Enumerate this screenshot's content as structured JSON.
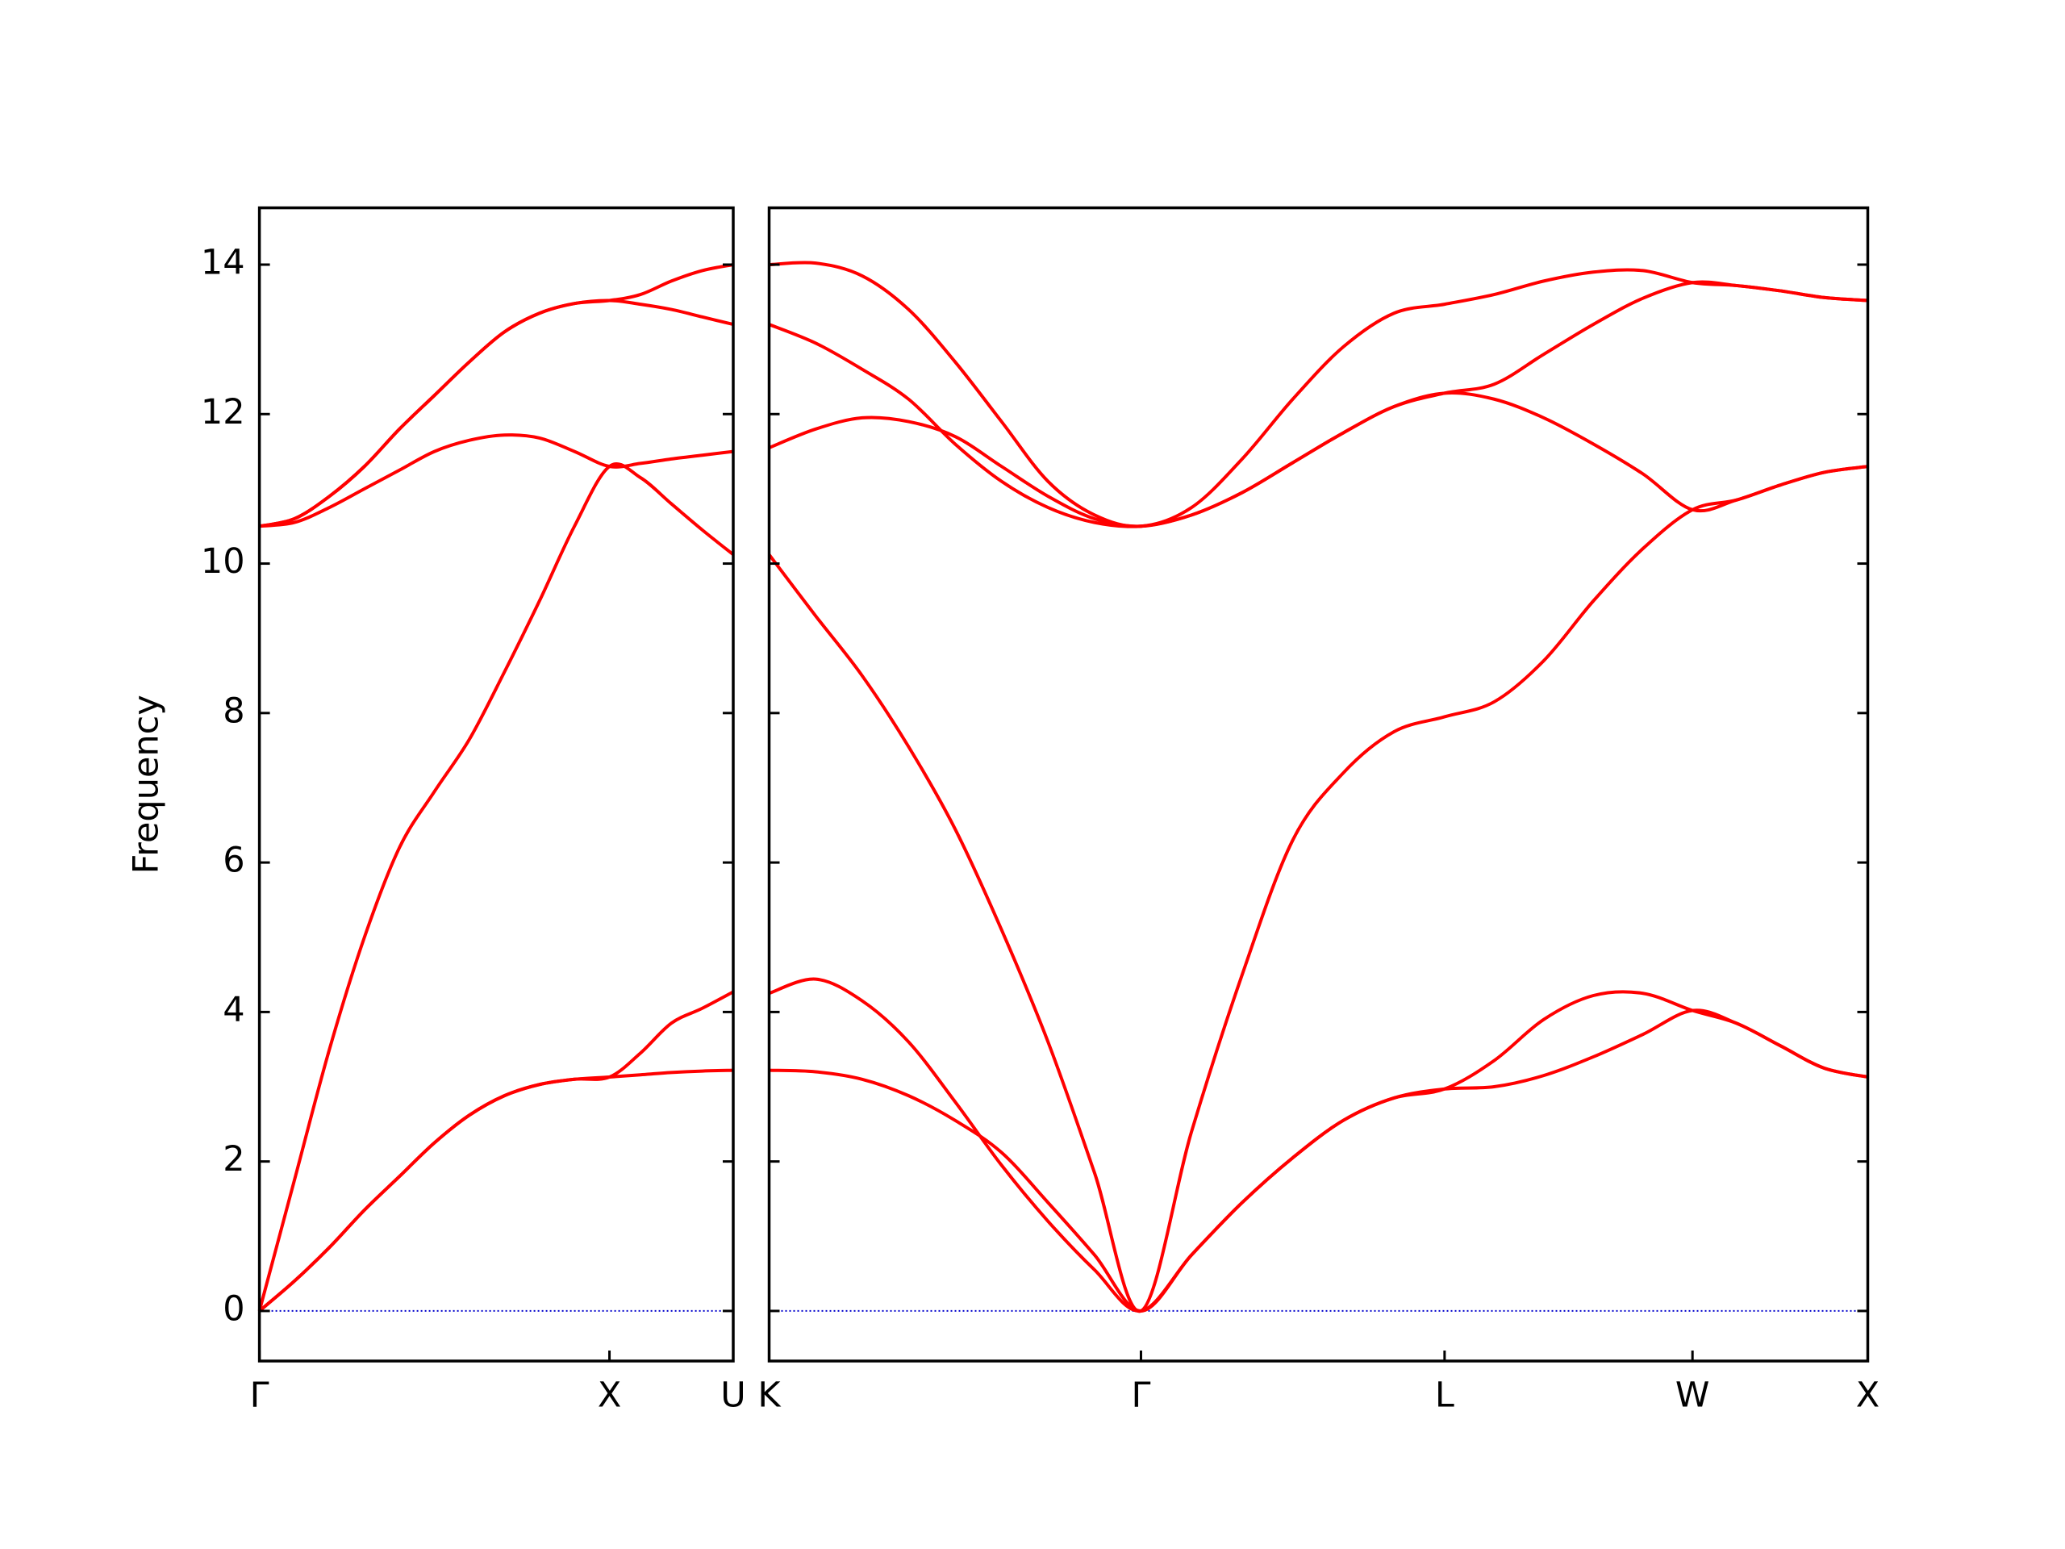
{
  "chart_data": [
    {
      "type": "line",
      "ylabel": "Frequency",
      "color": "#ff0000",
      "x": [
        0,
        0.1,
        0.2,
        0.3,
        0.4,
        0.5,
        0.6,
        0.7,
        0.8,
        0.9,
        1.0,
        1.0885,
        1.1768,
        1.2652,
        1.3536
      ],
      "xlim": [
        0,
        1.3536
      ],
      "xticks": [
        {
          "value": 0,
          "label": "Γ"
        },
        {
          "value": 1.0,
          "label": "X"
        },
        {
          "value": 1.3536,
          "label": "U"
        }
      ],
      "ylim": [
        -0.67,
        14.76
      ],
      "yticks": [
        0,
        2,
        4,
        6,
        8,
        10,
        12,
        14
      ],
      "ytick_labels": true,
      "hline": {
        "value": 0,
        "color": "#0000cc",
        "style": "dotted"
      },
      "series": [
        {
          "values": [
            0,
            0.4,
            0.85,
            1.35,
            1.8,
            2.25,
            2.62,
            2.88,
            3.03,
            3.1,
            3.13,
            3.16,
            3.19,
            3.21,
            3.22
          ]
        },
        {
          "values": [
            0,
            0.4,
            0.85,
            1.35,
            1.8,
            2.25,
            2.62,
            2.88,
            3.03,
            3.1,
            3.13,
            3.45,
            3.85,
            4.05,
            4.27
          ]
        },
        {
          "values": [
            0,
            1.75,
            3.5,
            5.0,
            6.2,
            6.95,
            7.65,
            8.55,
            9.5,
            10.5,
            11.3,
            11.15,
            10.8,
            10.45,
            10.12
          ]
        },
        {
          "values": [
            10.5,
            10.55,
            10.75,
            11.0,
            11.25,
            11.5,
            11.65,
            11.72,
            11.68,
            11.5,
            11.3,
            11.34,
            11.4,
            11.45,
            11.5
          ]
        },
        {
          "values": [
            10.5,
            10.6,
            10.9,
            11.3,
            11.8,
            12.25,
            12.7,
            13.1,
            13.35,
            13.48,
            13.52,
            13.47,
            13.4,
            13.3,
            13.2
          ]
        },
        {
          "values": [
            10.5,
            10.6,
            10.9,
            11.3,
            11.8,
            12.25,
            12.7,
            13.1,
            13.35,
            13.48,
            13.52,
            13.6,
            13.78,
            13.92,
            14.0
          ]
        }
      ]
    },
    {
      "type": "line",
      "color": "#ff0000",
      "x": [
        1.3536,
        1.4862,
        1.6188,
        1.7513,
        1.8839,
        2.0165,
        2.1491,
        2.2816,
        2.4142,
        2.5585,
        2.7029,
        2.8472,
        2.9915,
        3.1359,
        3.2802,
        3.4216,
        3.563,
        3.7045,
        3.8459,
        3.9873,
        4.1123,
        4.2373,
        4.3623,
        4.4873
      ],
      "xlim": [
        1.3536,
        4.4873
      ],
      "xticks": [
        {
          "value": 1.3536,
          "label": "K"
        },
        {
          "value": 2.4142,
          "label": "Γ"
        },
        {
          "value": 3.2802,
          "label": "L"
        },
        {
          "value": 3.9873,
          "label": "W"
        },
        {
          "value": 4.4873,
          "label": "X"
        }
      ],
      "ylim": [
        -0.67,
        14.76
      ],
      "yticks": [
        0,
        2,
        4,
        6,
        8,
        10,
        12,
        14
      ],
      "ytick_labels": false,
      "hline": {
        "value": 0,
        "color": "#0000cc",
        "style": "dotted"
      },
      "series": [
        {
          "values": [
            3.22,
            3.2,
            3.1,
            2.88,
            2.55,
            2.12,
            1.45,
            0.75,
            0,
            0.75,
            1.45,
            2.05,
            2.55,
            2.85,
            2.97,
            3.0,
            3.15,
            3.4,
            3.7,
            4.02,
            3.85,
            3.55,
            3.25,
            3.13
          ]
        },
        {
          "values": [
            4.25,
            4.44,
            4.15,
            3.6,
            2.8,
            1.95,
            1.2,
            0.55,
            0,
            0.75,
            1.45,
            2.05,
            2.55,
            2.85,
            2.97,
            3.35,
            3.9,
            4.22,
            4.25,
            4.02,
            3.85,
            3.55,
            3.25,
            3.13
          ]
        },
        {
          "values": [
            10.12,
            9.3,
            8.5,
            7.55,
            6.45,
            5.1,
            3.6,
            1.85,
            0,
            2.4,
            4.5,
            6.3,
            7.2,
            7.75,
            7.95,
            8.15,
            8.7,
            9.5,
            10.2,
            10.72,
            10.85,
            11.05,
            11.22,
            11.3
          ]
        },
        {
          "values": [
            11.55,
            11.8,
            11.95,
            11.9,
            11.7,
            11.3,
            10.9,
            10.6,
            10.5,
            10.65,
            10.95,
            11.35,
            11.75,
            12.1,
            12.28,
            12.2,
            11.95,
            11.6,
            11.2,
            10.72,
            10.85,
            11.05,
            11.22,
            11.3
          ]
        },
        {
          "values": [
            13.2,
            12.95,
            12.6,
            12.2,
            11.6,
            11.1,
            10.75,
            10.55,
            10.5,
            10.65,
            10.95,
            11.35,
            11.75,
            12.1,
            12.28,
            12.4,
            12.8,
            13.2,
            13.55,
            13.76,
            13.72,
            13.65,
            13.56,
            13.52
          ]
        },
        {
          "values": [
            14.0,
            14.02,
            13.85,
            13.4,
            12.7,
            11.9,
            11.1,
            10.65,
            10.5,
            10.75,
            11.4,
            12.2,
            12.9,
            13.35,
            13.47,
            13.6,
            13.78,
            13.9,
            13.92,
            13.76,
            13.72,
            13.65,
            13.56,
            13.52
          ]
        }
      ]
    }
  ]
}
